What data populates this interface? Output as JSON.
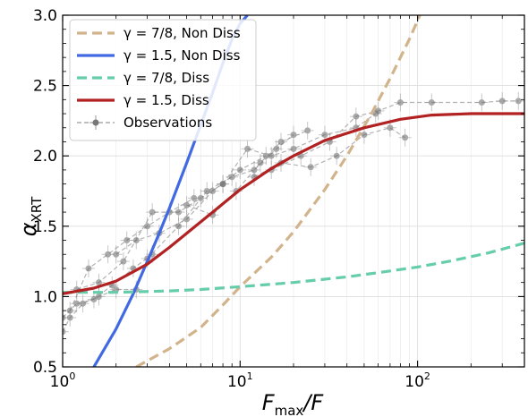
{
  "chart_data": {
    "type": "line",
    "xscale": "log",
    "xlim": [
      1,
      400
    ],
    "ylim": [
      0.5,
      3.0
    ],
    "xlabel_main": "F",
    "xlabel_sub": "max",
    "xlabel_tail": "/F",
    "ylabel_main": "α",
    "ylabel_sub": "XRT",
    "x_ticks": [
      {
        "value": 1,
        "base": "10",
        "exp": "0"
      },
      {
        "value": 10,
        "base": "10",
        "exp": "1"
      },
      {
        "value": 100,
        "base": "10",
        "exp": "2"
      }
    ],
    "y_ticks": [
      0.5,
      1.0,
      1.5,
      2.0,
      2.5,
      3.0
    ],
    "y_tick_labels": [
      "0.5",
      "1.0",
      "1.5",
      "2.0",
      "2.5",
      "3.0"
    ],
    "grid": true,
    "legend_position": "top-left",
    "series": [
      {
        "name": "γ = 7/8, Non Diss",
        "style": "dashed",
        "color": "#d2b48c",
        "points": [
          [
            2.6,
            0.5
          ],
          [
            4,
            0.63
          ],
          [
            6,
            0.78
          ],
          [
            8,
            0.94
          ],
          [
            10,
            1.07
          ],
          [
            15,
            1.28
          ],
          [
            20,
            1.46
          ],
          [
            30,
            1.76
          ],
          [
            40,
            2.0
          ],
          [
            55,
            2.3
          ],
          [
            70,
            2.55
          ],
          [
            90,
            2.83
          ],
          [
            103,
            3.0
          ]
        ]
      },
      {
        "name": "γ = 1.5, Non Diss",
        "style": "solid",
        "color": "#4169e1",
        "points": [
          [
            1.5,
            0.5
          ],
          [
            2,
            0.77
          ],
          [
            2.5,
            1.02
          ],
          [
            3,
            1.25
          ],
          [
            3.5,
            1.45
          ],
          [
            4,
            1.63
          ],
          [
            5,
            1.95
          ],
          [
            6,
            2.22
          ],
          [
            7,
            2.45
          ],
          [
            8,
            2.66
          ],
          [
            9,
            2.83
          ],
          [
            10,
            2.94
          ],
          [
            11,
            3.0
          ]
        ]
      },
      {
        "name": "γ = 7/8, Diss",
        "style": "dashed",
        "color": "#66cdaa",
        "points": [
          [
            1,
            1.03
          ],
          [
            2,
            1.03
          ],
          [
            4,
            1.04
          ],
          [
            6,
            1.05
          ],
          [
            10,
            1.07
          ],
          [
            20,
            1.1
          ],
          [
            40,
            1.14
          ],
          [
            60,
            1.17
          ],
          [
            100,
            1.21
          ],
          [
            150,
            1.25
          ],
          [
            250,
            1.31
          ],
          [
            400,
            1.38
          ]
        ]
      },
      {
        "name": "γ = 1.5, Diss",
        "style": "solid",
        "color": "#b22222",
        "points": [
          [
            1,
            1.02
          ],
          [
            1.5,
            1.06
          ],
          [
            2,
            1.11
          ],
          [
            3,
            1.23
          ],
          [
            4,
            1.35
          ],
          [
            5,
            1.45
          ],
          [
            7,
            1.6
          ],
          [
            10,
            1.76
          ],
          [
            15,
            1.91
          ],
          [
            20,
            2.0
          ],
          [
            30,
            2.11
          ],
          [
            50,
            2.2
          ],
          [
            80,
            2.26
          ],
          [
            120,
            2.29
          ],
          [
            200,
            2.3
          ],
          [
            400,
            2.3
          ]
        ]
      },
      {
        "name": "Observations",
        "style": "dashed-markers",
        "color": "#999999",
        "groups": [
          [
            [
              1.0,
              0.75
            ],
            [
              1.1,
              0.85
            ],
            [
              1.3,
              0.95
            ],
            [
              1.6,
              1.0
            ],
            [
              2.0,
              1.05
            ],
            [
              2.6,
              1.05
            ]
          ],
          [
            [
              1.0,
              0.85
            ],
            [
              1.2,
              0.95
            ],
            [
              1.5,
              0.98
            ],
            [
              1.9,
              1.08
            ],
            [
              2.5,
              1.2
            ],
            [
              3.2,
              1.3
            ]
          ],
          [
            [
              1.1,
              0.9
            ],
            [
              1.4,
              1.2
            ],
            [
              1.8,
              1.3
            ],
            [
              2.3,
              1.4
            ],
            [
              3.0,
              1.5
            ],
            [
              4.0,
              1.6
            ],
            [
              5.5,
              1.7
            ]
          ],
          [
            [
              1.2,
              1.05
            ],
            [
              1.6,
              1.1
            ],
            [
              2.2,
              1.25
            ],
            [
              3.2,
              1.6
            ],
            [
              4.5,
              1.6
            ],
            [
              6.0,
              1.7
            ],
            [
              8.0,
              1.8
            ]
          ],
          [
            [
              2.0,
              1.3
            ],
            [
              2.6,
              1.4
            ],
            [
              3.5,
              1.45
            ],
            [
              5.0,
              1.55
            ],
            [
              7.0,
              1.75
            ],
            [
              10,
              1.9
            ],
            [
              14,
              2.0
            ]
          ],
          [
            [
              3.0,
              1.27
            ],
            [
              4.5,
              1.5
            ],
            [
              6.5,
              1.75
            ],
            [
              9.0,
              1.85
            ],
            [
              12,
              1.9
            ],
            [
              16,
              2.05
            ],
            [
              20,
              2.15
            ]
          ],
          [
            [
              5.0,
              1.65
            ],
            [
              7.0,
              1.58
            ],
            [
              9.5,
              1.75
            ],
            [
              13,
              1.95
            ],
            [
              17,
              2.1
            ],
            [
              24,
              2.18
            ]
          ],
          [
            [
              8.0,
              1.8
            ],
            [
              11,
              2.05
            ],
            [
              15,
              2.0
            ],
            [
              20,
              2.05
            ],
            [
              30,
              2.15
            ],
            [
              45,
              2.2
            ],
            [
              58,
              2.3
            ]
          ],
          [
            [
              12,
              1.85
            ],
            [
              17,
              1.95
            ],
            [
              25,
              1.92
            ],
            [
              35,
              2.0
            ],
            [
              50,
              2.15
            ],
            [
              70,
              2.2
            ],
            [
              85,
              2.13
            ]
          ],
          [
            [
              15,
              1.9
            ],
            [
              22,
              2.0
            ],
            [
              32,
              2.1
            ],
            [
              45,
              2.28
            ],
            [
              60,
              2.32
            ],
            [
              80,
              2.38
            ],
            [
              120,
              2.38
            ],
            [
              230,
              2.38
            ],
            [
              300,
              2.39
            ],
            [
              370,
              2.39
            ]
          ]
        ]
      }
    ]
  }
}
